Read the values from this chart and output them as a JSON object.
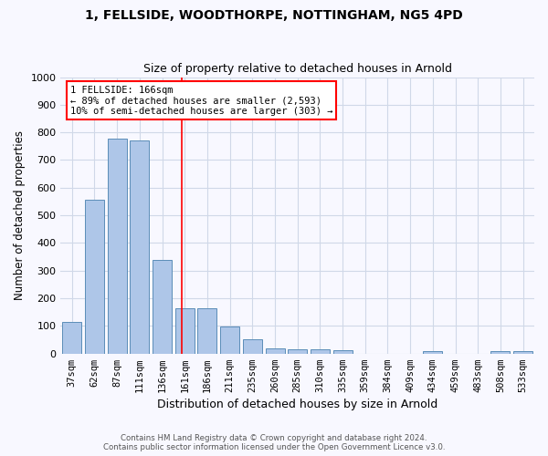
{
  "title1": "1, FELLSIDE, WOODTHORPE, NOTTINGHAM, NG5 4PD",
  "title2": "Size of property relative to detached houses in Arnold",
  "xlabel": "Distribution of detached houses by size in Arnold",
  "ylabel": "Number of detached properties",
  "categories": [
    "37sqm",
    "62sqm",
    "87sqm",
    "111sqm",
    "136sqm",
    "161sqm",
    "186sqm",
    "211sqm",
    "235sqm",
    "260sqm",
    "285sqm",
    "310sqm",
    "335sqm",
    "359sqm",
    "384sqm",
    "409sqm",
    "434sqm",
    "459sqm",
    "483sqm",
    "508sqm",
    "533sqm"
  ],
  "values": [
    113,
    558,
    778,
    770,
    340,
    163,
    163,
    97,
    52,
    18,
    15,
    15,
    12,
    0,
    0,
    0,
    10,
    0,
    0,
    10,
    10
  ],
  "bar_color": "#aec6e8",
  "bar_edge_color": "#5b8db8",
  "vline_x": 4.85,
  "vline_color": "red",
  "annotation_text": "1 FELLSIDE: 166sqm\n← 89% of detached houses are smaller (2,593)\n10% of semi-detached houses are larger (303) →",
  "annotation_box_color": "white",
  "annotation_box_edge": "red",
  "ylim": [
    0,
    1000
  ],
  "yticks": [
    0,
    100,
    200,
    300,
    400,
    500,
    600,
    700,
    800,
    900,
    1000
  ],
  "footer1": "Contains HM Land Registry data © Crown copyright and database right 2024.",
  "footer2": "Contains public sector information licensed under the Open Government Licence v3.0.",
  "bg_color": "#f8f8ff",
  "plot_bg_color": "#f8f8ff",
  "grid_color": "#d0d8e8"
}
